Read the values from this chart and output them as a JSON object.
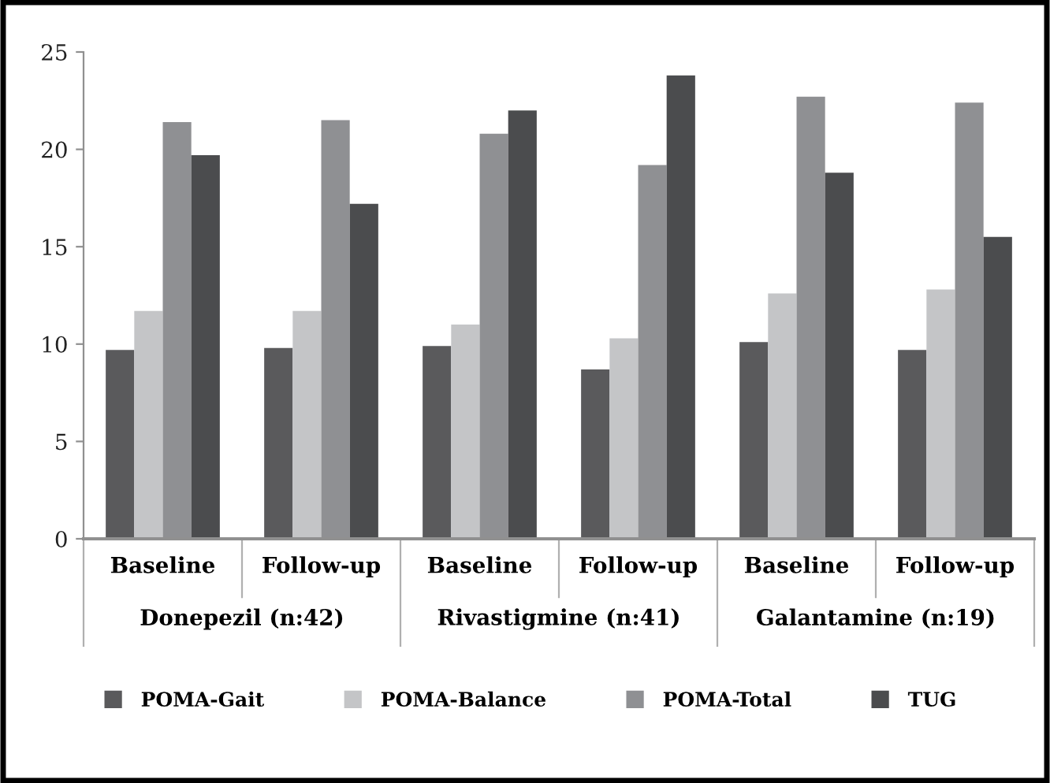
{
  "chart_data": {
    "type": "bar",
    "categories": [
      "Baseline",
      "Follow-up",
      "Baseline",
      "Follow-up",
      "Baseline",
      "Follow-up"
    ],
    "annotations": [
      "Donepezil (n:42)",
      "Rivastigmine (n:41)",
      "Galantamine (n:19)"
    ],
    "series": [
      {
        "name": "POMA-Gait",
        "color": "#5a5a5c",
        "values": [
          9.7,
          9.8,
          9.9,
          8.7,
          10.1,
          9.7
        ]
      },
      {
        "name": "POMA-Balance",
        "color": "#c4c5c7",
        "values": [
          11.7,
          11.7,
          11.0,
          10.3,
          12.6,
          12.8
        ]
      },
      {
        "name": "POMA-Total",
        "color": "#8f9093",
        "values": [
          21.4,
          21.5,
          20.8,
          19.2,
          22.7,
          22.4
        ]
      },
      {
        "name": "TUG",
        "color": "#4b4c4e",
        "values": [
          19.7,
          17.2,
          22.0,
          23.8,
          18.8,
          15.5
        ]
      }
    ],
    "ylim": [
      0,
      25
    ],
    "yticks": [
      0,
      5,
      10,
      15,
      20,
      25
    ],
    "grid": false,
    "legend": "bottom"
  }
}
